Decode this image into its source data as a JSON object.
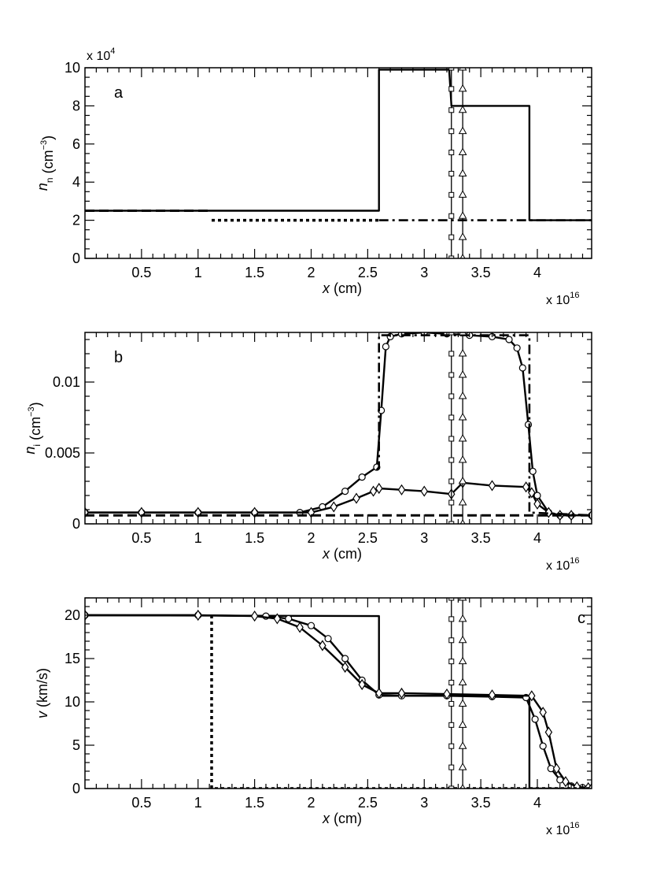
{
  "chart_data": [
    {
      "panel": "a",
      "type": "line",
      "x_multiplier": "x 10",
      "x_multiplier_exp": "16",
      "y_multiplier": "x 10",
      "y_multiplier_exp": "4",
      "xlabel_sym": "x",
      "xlabel_unit": " (cm)",
      "ylabel_sym": "n",
      "ylabel_sub": "n",
      "ylabel_unit": "  (cm",
      "ylabel_exp": "−3",
      "ylabel_close": ")",
      "xlim": [
        0,
        4.48
      ],
      "ylim": [
        0,
        10
      ],
      "xticks": [
        "0.5",
        "1",
        "1.5",
        "2",
        "2.5",
        "3",
        "3.5",
        "4"
      ],
      "xtick_values": [
        0.5,
        1,
        1.5,
        2,
        2.5,
        3,
        3.5,
        4
      ],
      "yticks": [
        "0",
        "2",
        "4",
        "6",
        "8",
        "10"
      ],
      "ytick_values": [
        0,
        2,
        4,
        6,
        8,
        10
      ],
      "series": [
        {
          "style": "solid",
          "x": [
            0,
            2.6,
            2.6,
            3.22,
            3.24,
            3.93,
            3.93,
            4.48
          ],
          "y": [
            2.5,
            2.5,
            9.9,
            9.9,
            8.0,
            8.0,
            2.0,
            2.0
          ]
        },
        {
          "style": "dashed",
          "x": [
            0,
            1.1
          ],
          "y": [
            2.5,
            2.5
          ]
        },
        {
          "style": "dotted",
          "x": [
            1.12,
            2.6
          ],
          "y": [
            2.0,
            2.0
          ]
        },
        {
          "style": "dashdot",
          "x": [
            2.6,
            4.48
          ],
          "y": [
            2.0,
            2.0
          ]
        }
      ],
      "vlines": [
        {
          "x": 3.24,
          "marker": "square"
        },
        {
          "x": 3.34,
          "marker": "triangle"
        }
      ]
    },
    {
      "panel": "b",
      "type": "line",
      "x_multiplier": "x 10",
      "x_multiplier_exp": "16",
      "xlabel_sym": "x",
      "xlabel_unit": " (cm)",
      "ylabel_sym": "n",
      "ylabel_sub": "i",
      "ylabel_unit": " (cm",
      "ylabel_exp": "−3",
      "ylabel_close": ")",
      "xlim": [
        0,
        4.48
      ],
      "ylim": [
        0,
        0.0135
      ],
      "xticks": [
        "0.5",
        "1",
        "1.5",
        "2",
        "2.5",
        "3",
        "3.5",
        "4"
      ],
      "xtick_values": [
        0.5,
        1,
        1.5,
        2,
        2.5,
        3,
        3.5,
        4
      ],
      "yticks": [
        "0",
        "0.005",
        "0.01"
      ],
      "ytick_values": [
        0,
        0.005,
        0.01
      ],
      "series": [
        {
          "style": "solid",
          "marker": "circle",
          "x": [
            0,
            0.5,
            1.0,
            1.5,
            1.9,
            2.1,
            2.3,
            2.45,
            2.58,
            2.62,
            2.66,
            2.7,
            2.8,
            3.0,
            3.2,
            3.4,
            3.6,
            3.75,
            3.82,
            3.87,
            3.92,
            3.96,
            4.0,
            4.1,
            4.2,
            4.3,
            4.48
          ],
          "y": [
            0.0008,
            0.0008,
            0.0008,
            0.0008,
            0.0008,
            0.0012,
            0.0023,
            0.0033,
            0.004,
            0.008,
            0.0125,
            0.0132,
            0.0134,
            0.0135,
            0.0134,
            0.0133,
            0.0132,
            0.013,
            0.0124,
            0.011,
            0.007,
            0.0037,
            0.002,
            0.0008,
            0.0006,
            0.0006,
            0.0006
          ]
        },
        {
          "style": "solid",
          "marker": "diamond",
          "x": [
            0,
            0.5,
            1.0,
            1.5,
            2.0,
            2.2,
            2.4,
            2.55,
            2.6,
            2.8,
            3.0,
            3.24,
            3.34,
            3.6,
            3.9,
            3.95,
            4.0,
            4.1,
            4.2,
            4.3,
            4.48
          ],
          "y": [
            0.0008,
            0.0008,
            0.0008,
            0.0008,
            0.0008,
            0.0012,
            0.0018,
            0.0023,
            0.0025,
            0.0024,
            0.0023,
            0.0021,
            0.0029,
            0.0027,
            0.0026,
            0.0022,
            0.0014,
            0.0008,
            0.0006,
            0.0006,
            0.0006
          ]
        },
        {
          "style": "dashed",
          "x": [
            0,
            4.48
          ],
          "y": [
            0.0006,
            0.0006
          ]
        },
        {
          "style": "dashdot",
          "x": [
            2.58,
            2.6,
            2.6,
            3.93,
            3.93,
            4.48
          ],
          "y": [
            0.0038,
            0.004,
            0.0133,
            0.0133,
            0.0008,
            0.0006
          ]
        }
      ],
      "vlines": [
        {
          "x": 3.24,
          "marker": "square"
        },
        {
          "x": 3.34,
          "marker": "triangle"
        }
      ]
    },
    {
      "panel": "c",
      "type": "line",
      "x_multiplier": "x 10",
      "x_multiplier_exp": "16",
      "xlabel_sym": "x",
      "xlabel_unit": " (cm)",
      "ylabel_sym": "v",
      "ylabel_sub": "",
      "ylabel_unit": " (km/s)",
      "ylabel_exp": "",
      "ylabel_close": "",
      "xlim": [
        0,
        4.48
      ],
      "ylim": [
        0,
        22
      ],
      "xticks": [
        "0.5",
        "1",
        "1.5",
        "2",
        "2.5",
        "3",
        "3.5",
        "4"
      ],
      "xtick_values": [
        0.5,
        1,
        1.5,
        2,
        2.5,
        3,
        3.5,
        4
      ],
      "yticks": [
        "0",
        "5",
        "10",
        "15",
        "20"
      ],
      "ytick_values": [
        0,
        5,
        10,
        15,
        20
      ],
      "series": [
        {
          "style": "solid",
          "x": [
            0,
            2.6,
            2.6,
            3.93,
            3.93,
            4.48
          ],
          "y": [
            20,
            19.9,
            10.7,
            10.7,
            0,
            0
          ]
        },
        {
          "style": "solid",
          "marker": "circle",
          "x": [
            0,
            1.0,
            1.6,
            1.8,
            2.0,
            2.15,
            2.3,
            2.45,
            2.6,
            2.8,
            3.2,
            3.6,
            3.9,
            3.98,
            4.05,
            4.12,
            4.2,
            4.3,
            4.4,
            4.48
          ],
          "y": [
            20,
            20,
            19.9,
            19.6,
            18.8,
            17.3,
            15.0,
            12.5,
            10.8,
            10.7,
            10.7,
            10.6,
            10.5,
            8.0,
            4.9,
            2.3,
            1.0,
            0.3,
            0.1,
            0
          ]
        },
        {
          "style": "solid",
          "marker": "diamond",
          "x": [
            0,
            1.0,
            1.5,
            1.7,
            1.9,
            2.1,
            2.3,
            2.45,
            2.6,
            2.8,
            3.2,
            3.6,
            3.95,
            4.05,
            4.1,
            4.17,
            4.25,
            4.35,
            4.45,
            4.48
          ],
          "y": [
            20,
            20,
            19.9,
            19.6,
            18.6,
            16.5,
            14.0,
            12.0,
            11.0,
            11.0,
            10.9,
            10.8,
            10.7,
            8.8,
            6.5,
            2.3,
            0.8,
            0.2,
            0.1,
            0
          ]
        },
        {
          "style": "dotted",
          "x": [
            1.12,
            1.12,
            4.48
          ],
          "y": [
            20,
            0,
            0
          ]
        }
      ],
      "vlines": [
        {
          "x": 3.24,
          "marker": "square"
        },
        {
          "x": 3.34,
          "marker": "triangle"
        }
      ]
    }
  ]
}
